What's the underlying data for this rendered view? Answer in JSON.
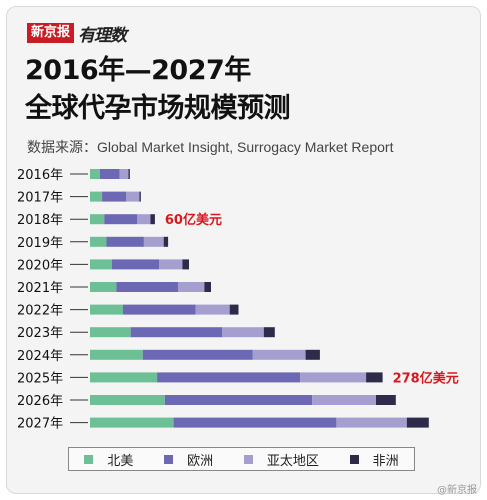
{
  "header": {
    "brand_left": "新京报",
    "brand_right": "有理数",
    "title_line1": "2016年—2027年",
    "title_line2": "全球代孕市场规模预测",
    "source": "数据来源：Global Market Insight, Surrogacy Market Report"
  },
  "watermark": "@新京报",
  "chart_data": {
    "type": "bar",
    "orientation": "horizontal",
    "stacked": true,
    "categories": [
      "2016年",
      "2017年",
      "2018年",
      "2019年",
      "2020年",
      "2021年",
      "2022年",
      "2023年",
      "2024年",
      "2025年",
      "2026年",
      "2027年"
    ],
    "series": [
      {
        "name": "北美",
        "color": "#6dbf96",
        "values": [
          4.5,
          5.5,
          6.5,
          7.5,
          10,
          12,
          15,
          18.5,
          24,
          30.5,
          34,
          38
        ]
      },
      {
        "name": "欧洲",
        "color": "#6d68b4",
        "values": [
          9,
          11,
          15,
          17,
          21.5,
          28,
          33,
          41.5,
          50,
          65,
          67,
          74
        ]
      },
      {
        "name": "亚太地区",
        "color": "#a59fd0",
        "values": [
          4,
          6,
          6,
          9,
          10.5,
          12,
          15.5,
          19,
          24,
          30,
          29,
          32
        ]
      },
      {
        "name": "非洲",
        "color": "#2d2a4a",
        "values": [
          0.6,
          0.6,
          2,
          2,
          3,
          3,
          4,
          5,
          6.5,
          7.5,
          9,
          10
        ]
      }
    ],
    "annotations": [
      {
        "category": "2018年",
        "text": "60亿美元"
      },
      {
        "category": "2025年",
        "text": "278亿美元"
      }
    ],
    "annotation_color": "#d7191f",
    "xlim": [
      0,
      160
    ],
    "grid": false,
    "legend_position": "bottom"
  }
}
